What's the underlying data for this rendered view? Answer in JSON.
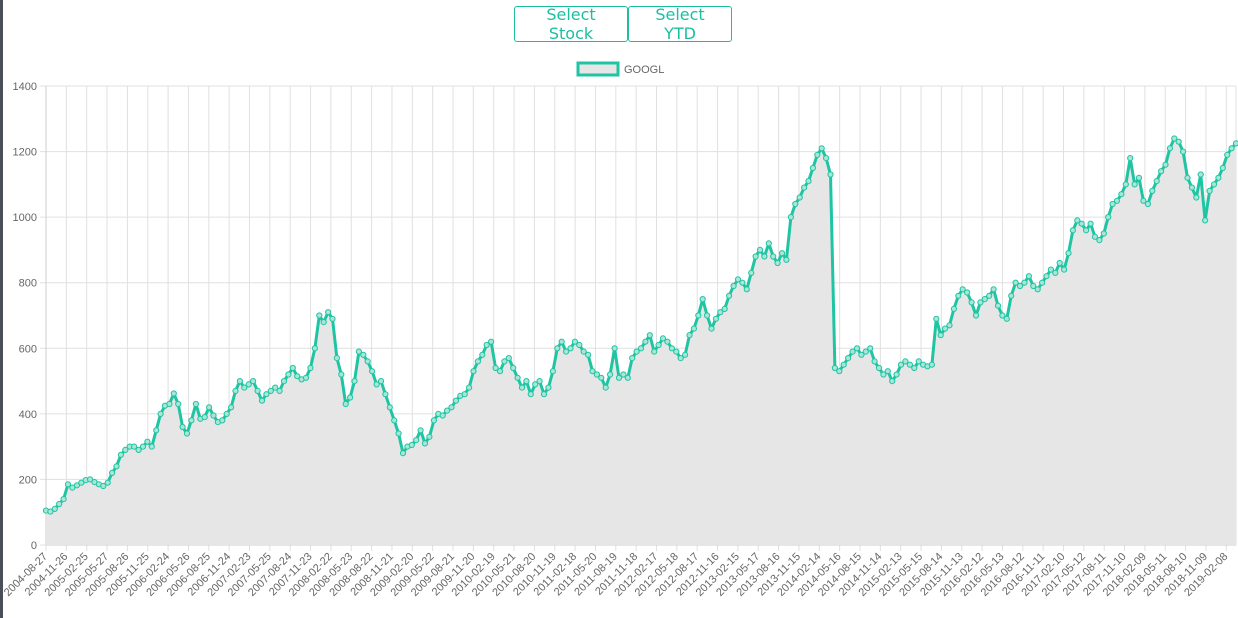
{
  "toolbar": {
    "select_stock_label": "Select Stock",
    "select_ytd_label": "Select YTD"
  },
  "colors": {
    "accent": "#1bbfa0",
    "line": "#1fc5a3",
    "fill": "#e6e6e6",
    "grid": "#e0e0e0",
    "text": "#666666"
  },
  "chart_data": {
    "type": "area",
    "title": "",
    "xlabel": "",
    "ylabel": "",
    "ylim": [
      0,
      1400
    ],
    "y_ticks": [
      0,
      200,
      400,
      600,
      800,
      1000,
      1200,
      1400
    ],
    "grid": true,
    "legend_position": "top-center",
    "x_tick_labels": [
      "2004-08-27",
      "2004-11-26",
      "2005-02-25",
      "2005-05-27",
      "2005-08-26",
      "2005-11-25",
      "2006-02-24",
      "2006-05-26",
      "2006-08-25",
      "2006-11-24",
      "2007-02-23",
      "2007-05-25",
      "2007-08-24",
      "2007-11-23",
      "2008-02-22",
      "2008-05-23",
      "2008-08-22",
      "2008-11-21",
      "2009-02-20",
      "2009-05-22",
      "2009-08-21",
      "2009-11-20",
      "2010-02-19",
      "2010-05-21",
      "2010-08-20",
      "2010-11-19",
      "2011-02-18",
      "2011-05-20",
      "2011-08-19",
      "2011-11-18",
      "2012-02-17",
      "2012-05-18",
      "2012-08-17",
      "2012-11-16",
      "2013-02-15",
      "2013-05-17",
      "2013-08-16",
      "2013-11-15",
      "2014-02-14",
      "2014-05-16",
      "2014-08-15",
      "2014-11-14",
      "2015-02-13",
      "2015-05-15",
      "2015-08-14",
      "2015-11-13",
      "2016-02-12",
      "2016-05-13",
      "2016-08-12",
      "2016-11-11",
      "2017-02-10",
      "2017-05-12",
      "2017-08-11",
      "2017-11-10",
      "2018-02-09",
      "2018-05-11",
      "2018-08-10",
      "2018-11-09",
      "2019-02-08"
    ],
    "series": [
      {
        "name": "GOOGL",
        "values": [
          [
            0,
            105
          ],
          [
            1,
            102
          ],
          [
            2,
            110
          ],
          [
            3,
            125
          ],
          [
            4,
            140
          ],
          [
            5,
            185
          ],
          [
            6,
            175
          ],
          [
            7,
            182
          ],
          [
            8,
            190
          ],
          [
            9,
            198
          ],
          [
            10,
            200
          ],
          [
            11,
            192
          ],
          [
            12,
            185
          ],
          [
            13,
            180
          ],
          [
            14,
            190
          ],
          [
            15,
            220
          ],
          [
            16,
            240
          ],
          [
            17,
            275
          ],
          [
            18,
            290
          ],
          [
            19,
            300
          ],
          [
            20,
            300
          ],
          [
            21,
            290
          ],
          [
            22,
            300
          ],
          [
            23,
            315
          ],
          [
            24,
            300
          ],
          [
            25,
            350
          ],
          [
            26,
            400
          ],
          [
            27,
            425
          ],
          [
            28,
            430
          ],
          [
            29,
            462
          ],
          [
            30,
            430
          ],
          [
            31,
            360
          ],
          [
            32,
            340
          ],
          [
            33,
            380
          ],
          [
            34,
            430
          ],
          [
            35,
            385
          ],
          [
            36,
            390
          ],
          [
            37,
            420
          ],
          [
            38,
            395
          ],
          [
            39,
            375
          ],
          [
            40,
            380
          ],
          [
            41,
            400
          ],
          [
            42,
            420
          ],
          [
            43,
            470
          ],
          [
            44,
            500
          ],
          [
            45,
            480
          ],
          [
            46,
            490
          ],
          [
            47,
            500
          ],
          [
            48,
            470
          ],
          [
            49,
            440
          ],
          [
            50,
            460
          ],
          [
            51,
            470
          ],
          [
            52,
            480
          ],
          [
            53,
            470
          ],
          [
            54,
            500
          ],
          [
            55,
            520
          ],
          [
            56,
            540
          ],
          [
            57,
            515
          ],
          [
            58,
            505
          ],
          [
            59,
            510
          ],
          [
            60,
            540
          ],
          [
            61,
            600
          ],
          [
            62,
            700
          ],
          [
            63,
            680
          ],
          [
            64,
            710
          ],
          [
            65,
            690
          ],
          [
            66,
            570
          ],
          [
            67,
            520
          ],
          [
            68,
            430
          ],
          [
            69,
            450
          ],
          [
            70,
            500
          ],
          [
            71,
            590
          ],
          [
            72,
            580
          ],
          [
            73,
            560
          ],
          [
            74,
            530
          ],
          [
            75,
            490
          ],
          [
            76,
            500
          ],
          [
            77,
            460
          ],
          [
            78,
            420
          ],
          [
            79,
            380
          ],
          [
            80,
            340
          ],
          [
            81,
            280
          ],
          [
            82,
            300
          ],
          [
            83,
            305
          ],
          [
            84,
            320
          ],
          [
            85,
            350
          ],
          [
            86,
            310
          ],
          [
            87,
            330
          ],
          [
            88,
            380
          ],
          [
            89,
            400
          ],
          [
            90,
            395
          ],
          [
            91,
            410
          ],
          [
            92,
            420
          ],
          [
            93,
            440
          ],
          [
            94,
            455
          ],
          [
            95,
            460
          ],
          [
            96,
            480
          ],
          [
            97,
            530
          ],
          [
            98,
            560
          ],
          [
            99,
            580
          ],
          [
            100,
            610
          ],
          [
            101,
            620
          ],
          [
            102,
            540
          ],
          [
            103,
            530
          ],
          [
            104,
            560
          ],
          [
            105,
            570
          ],
          [
            106,
            540
          ],
          [
            107,
            510
          ],
          [
            108,
            480
          ],
          [
            109,
            500
          ],
          [
            110,
            460
          ],
          [
            111,
            490
          ],
          [
            112,
            500
          ],
          [
            113,
            460
          ],
          [
            114,
            480
          ],
          [
            115,
            530
          ],
          [
            116,
            600
          ],
          [
            117,
            620
          ],
          [
            118,
            590
          ],
          [
            119,
            600
          ],
          [
            120,
            620
          ],
          [
            121,
            610
          ],
          [
            122,
            590
          ],
          [
            123,
            580
          ],
          [
            124,
            530
          ],
          [
            125,
            520
          ],
          [
            126,
            510
          ],
          [
            127,
            480
          ],
          [
            128,
            520
          ],
          [
            129,
            600
          ],
          [
            130,
            510
          ],
          [
            131,
            520
          ],
          [
            132,
            510
          ],
          [
            133,
            570
          ],
          [
            134,
            590
          ],
          [
            135,
            600
          ],
          [
            136,
            620
          ],
          [
            137,
            640
          ],
          [
            138,
            590
          ],
          [
            139,
            610
          ],
          [
            140,
            630
          ],
          [
            141,
            620
          ],
          [
            142,
            600
          ],
          [
            143,
            590
          ],
          [
            144,
            570
          ],
          [
            145,
            580
          ],
          [
            146,
            640
          ],
          [
            147,
            660
          ],
          [
            148,
            700
          ],
          [
            149,
            750
          ],
          [
            150,
            700
          ],
          [
            151,
            660
          ],
          [
            152,
            690
          ],
          [
            153,
            710
          ],
          [
            154,
            720
          ],
          [
            155,
            760
          ],
          [
            156,
            790
          ],
          [
            157,
            810
          ],
          [
            158,
            800
          ],
          [
            159,
            780
          ],
          [
            160,
            830
          ],
          [
            161,
            880
          ],
          [
            162,
            900
          ],
          [
            163,
            880
          ],
          [
            164,
            920
          ],
          [
            165,
            880
          ],
          [
            166,
            860
          ],
          [
            167,
            890
          ],
          [
            168,
            870
          ],
          [
            169,
            1000
          ],
          [
            170,
            1040
          ],
          [
            171,
            1060
          ],
          [
            172,
            1090
          ],
          [
            173,
            1110
          ],
          [
            174,
            1150
          ],
          [
            175,
            1190
          ],
          [
            176,
            1210
          ],
          [
            177,
            1180
          ],
          [
            178,
            1130
          ],
          [
            179,
            540
          ],
          [
            180,
            530
          ],
          [
            181,
            550
          ],
          [
            182,
            570
          ],
          [
            183,
            590
          ],
          [
            184,
            600
          ],
          [
            185,
            580
          ],
          [
            186,
            590
          ],
          [
            187,
            600
          ],
          [
            188,
            560
          ],
          [
            189,
            540
          ],
          [
            190,
            520
          ],
          [
            191,
            530
          ],
          [
            192,
            500
          ],
          [
            193,
            520
          ],
          [
            194,
            550
          ],
          [
            195,
            560
          ],
          [
            196,
            550
          ],
          [
            197,
            540
          ],
          [
            198,
            560
          ],
          [
            199,
            550
          ],
          [
            200,
            545
          ],
          [
            201,
            550
          ],
          [
            202,
            690
          ],
          [
            203,
            640
          ],
          [
            204,
            660
          ],
          [
            205,
            670
          ],
          [
            206,
            720
          ],
          [
            207,
            760
          ],
          [
            208,
            780
          ],
          [
            209,
            770
          ],
          [
            210,
            740
          ],
          [
            211,
            700
          ],
          [
            212,
            740
          ],
          [
            213,
            750
          ],
          [
            214,
            760
          ],
          [
            215,
            780
          ],
          [
            216,
            730
          ],
          [
            217,
            700
          ],
          [
            218,
            690
          ],
          [
            219,
            760
          ],
          [
            220,
            800
          ],
          [
            221,
            790
          ],
          [
            222,
            800
          ],
          [
            223,
            820
          ],
          [
            224,
            790
          ],
          [
            225,
            780
          ],
          [
            226,
            800
          ],
          [
            227,
            820
          ],
          [
            228,
            840
          ],
          [
            229,
            830
          ],
          [
            230,
            860
          ],
          [
            231,
            840
          ],
          [
            232,
            890
          ],
          [
            233,
            960
          ],
          [
            234,
            990
          ],
          [
            235,
            980
          ],
          [
            236,
            960
          ],
          [
            237,
            980
          ],
          [
            238,
            940
          ],
          [
            239,
            930
          ],
          [
            240,
            950
          ],
          [
            241,
            1000
          ],
          [
            242,
            1040
          ],
          [
            243,
            1050
          ],
          [
            244,
            1070
          ],
          [
            245,
            1100
          ],
          [
            246,
            1180
          ],
          [
            247,
            1100
          ],
          [
            248,
            1120
          ],
          [
            249,
            1050
          ],
          [
            250,
            1040
          ],
          [
            251,
            1080
          ],
          [
            252,
            1110
          ],
          [
            253,
            1140
          ],
          [
            254,
            1160
          ],
          [
            255,
            1210
          ],
          [
            256,
            1240
          ],
          [
            257,
            1230
          ],
          [
            258,
            1200
          ],
          [
            259,
            1120
          ],
          [
            260,
            1090
          ],
          [
            261,
            1060
          ],
          [
            262,
            1130
          ],
          [
            263,
            990
          ],
          [
            264,
            1080
          ],
          [
            265,
            1100
          ],
          [
            266,
            1120
          ],
          [
            267,
            1150
          ],
          [
            268,
            1190
          ],
          [
            269,
            1210
          ],
          [
            270,
            1225
          ]
        ]
      }
    ]
  }
}
